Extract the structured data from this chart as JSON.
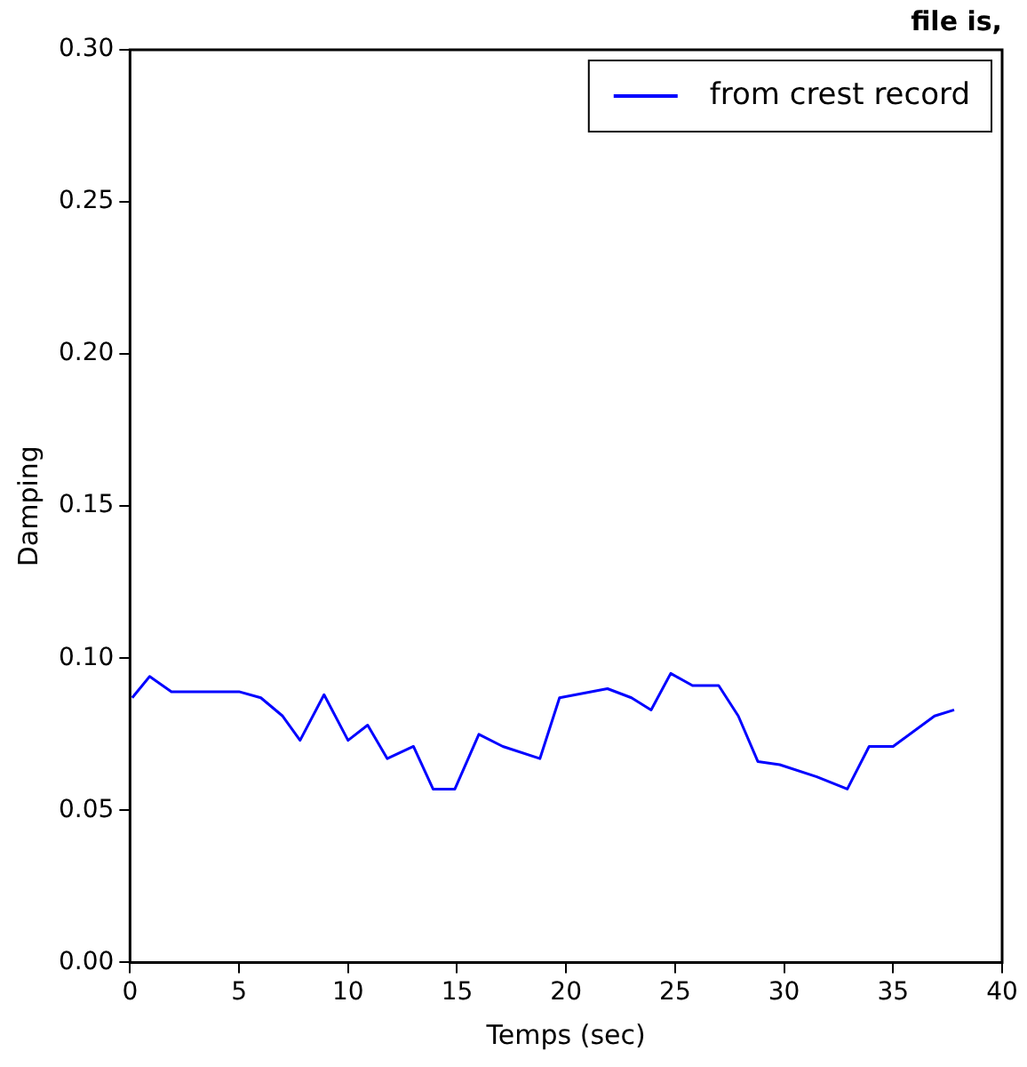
{
  "chart_data": {
    "type": "line",
    "title": "file is,",
    "xlabel": "Temps (sec)",
    "ylabel": "Damping",
    "xlim": [
      0,
      40
    ],
    "xticks": [
      0,
      5,
      10,
      15,
      20,
      25,
      30,
      35,
      40
    ],
    "ylim": [
      0,
      0.3
    ],
    "yticks": [
      {
        "value": 0,
        "label": "0.00"
      },
      {
        "value": 0.05,
        "label": "0.05"
      },
      {
        "value": 0.1,
        "label": "0.10"
      },
      {
        "value": 0.15,
        "label": "0.15"
      },
      {
        "value": 0.2,
        "label": "0.20"
      },
      {
        "value": 0.25,
        "label": "0.25"
      },
      {
        "value": 0.3,
        "label": "0.30"
      }
    ],
    "grid": false,
    "legend": "top right",
    "marker": "none",
    "line_style": "solid",
    "series": [
      {
        "name": "from crest record",
        "color": "#0000ff",
        "x": [
          0.1,
          0.9,
          1.9,
          5.0,
          6.0,
          7.0,
          7.8,
          8.9,
          10.0,
          10.9,
          11.8,
          13.0,
          13.9,
          14.9,
          16.0,
          17.1,
          18.8,
          19.7,
          21.9,
          23.0,
          23.9,
          24.8,
          25.8,
          27.0,
          27.9,
          28.8,
          29.8,
          31.5,
          32.9,
          33.9,
          35.0,
          36.9,
          37.8
        ],
        "values": [
          0.087,
          0.094,
          0.089,
          0.089,
          0.087,
          0.081,
          0.073,
          0.088,
          0.073,
          0.078,
          0.067,
          0.071,
          0.057,
          0.057,
          0.075,
          0.071,
          0.067,
          0.087,
          0.09,
          0.087,
          0.083,
          0.095,
          0.091,
          0.091,
          0.081,
          0.066,
          0.065,
          0.061,
          0.057,
          0.071,
          0.071,
          0.081,
          0.083
        ]
      }
    ]
  }
}
